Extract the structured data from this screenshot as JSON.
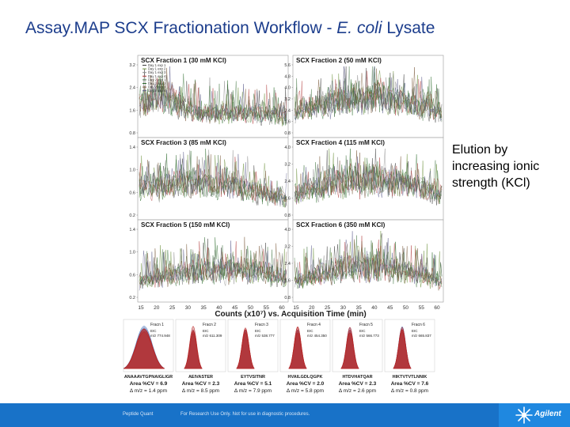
{
  "slide": {
    "title_main": "Assay.MAP SCX Fractionation Workflow - ",
    "title_italic": "E. coli",
    "title_end": " Lysate",
    "side_note": "Elution by increasing ionic strength (KCl)"
  },
  "footer": {
    "left_text": "Peptide Quant",
    "mid_text": "For Research Use Only. Not for use in diagnostic procedures.",
    "logo_text": "Agilent"
  },
  "colors": {
    "footer_bg": "#1872c8",
    "logo_bg": "#1f88e0",
    "title": "#1c3d8c",
    "trace_series": [
      "#3a3a3a",
      "#6b8f3a",
      "#8a8a8a",
      "#b03a3a",
      "#4a7a4a",
      "#2a6a2a",
      "#7a5a3a",
      "#5a5a8a"
    ],
    "peak_blue": "#5a7fc0",
    "peak_red": "#b82a2a"
  },
  "chart_data": [
    {
      "type": "line",
      "title": "SCX Fraction 1 (30 mM KCl)",
      "yticks": [
        "3.2",
        "2.4",
        "1.6",
        "0.8"
      ],
      "ylim": [
        0,
        3.6
      ],
      "legend": [
        "Day 1 exp 1",
        "Day 1 exp 2",
        "Day 1 exp 3",
        "Day 1 exp 4",
        "Day 2 exp 1",
        "Day 2 exp 2",
        "Day 2 exp 3",
        "Day 2 exp 4"
      ]
    },
    {
      "type": "line",
      "title": "SCX Fraction 2 (50 mM KCl)",
      "yticks": [
        "5.6",
        "4.8",
        "4.0",
        "3.2",
        "2.4",
        "1.6",
        "0.8"
      ],
      "ylim": [
        0,
        5.8
      ]
    },
    {
      "type": "line",
      "title": "SCX Fraction 3 (85 mM KCl)",
      "yticks": [
        "1.4",
        "1.0",
        "0.6",
        "0.2"
      ],
      "ylim": [
        0,
        1.6
      ]
    },
    {
      "type": "line",
      "title": "SCX Fraction 4 (115 mM KCl)",
      "yticks": [
        "4.0",
        "3.2",
        "2.4",
        "1.6",
        "0.8"
      ],
      "ylim": [
        0,
        4.4
      ]
    },
    {
      "type": "line",
      "title": "SCX Fraction 5 (150 mM KCl)",
      "yticks": [
        "1.4",
        "1.0",
        "0.6",
        "0.2"
      ],
      "ylim": [
        0,
        1.6
      ]
    },
    {
      "type": "line",
      "title": "SCX Fraction 6 (350 mM KCl)",
      "yticks": [
        "4.0",
        "3.2",
        "2.4",
        "1.6",
        "0.8"
      ],
      "ylim": [
        0,
        4.4
      ],
      "xticks": [
        "15",
        "20",
        "25",
        "30",
        "35",
        "40",
        "45",
        "50",
        "55",
        "60"
      ],
      "xlabel": "Counts (x10⁷) vs. Acquisition Time (min)"
    }
  ],
  "peaks": [
    {
      "fraction": "Fracn 1",
      "eic": "EIC",
      "mz": "m/z 774.948",
      "peptide": "ANAAAVTGPNAIGLIGR",
      "area_cv": "Area %CV = 6.9",
      "mass_err": "Δ m/z = 1.4 ppm"
    },
    {
      "fraction": "Fracn 2",
      "eic": "EIC",
      "mz": "m/z 611.309",
      "peptide": "AEIVASTER",
      "area_cv": "Area %CV = 2.3",
      "mass_err": "Δ m/z = 8.5 ppm"
    },
    {
      "fraction": "Fracn 3",
      "eic": "EIC",
      "mz": "m/z 538.777",
      "peptide": "EYTVSITNR",
      "area_cv": "Area %CV = 5.1",
      "mass_err": "Δ m/z = 7.9 ppm"
    },
    {
      "fraction": "Fracn 4",
      "eic": "EIC",
      "mz": "m/z 454.350",
      "peptide": "HVAILGDLQGPK",
      "area_cv": "Area %CV = 2.0",
      "mass_err": "Δ m/z = 5.8 ppm"
    },
    {
      "fraction": "Fracn 5",
      "eic": "EIC",
      "mz": "m/z 566.773",
      "peptide": "HTDVHATQAR",
      "area_cv": "Area %CV = 2.3",
      "mass_err": "Δ m/z = 2.6 ppm"
    },
    {
      "fraction": "Fracn 6",
      "eic": "EIC",
      "mz": "m/z 665.837",
      "peptide": "HIKTVTVTLNNIK",
      "area_cv": "Area %CV = 7.6",
      "mass_err": "Δ m/z = 0.8 ppm"
    }
  ]
}
